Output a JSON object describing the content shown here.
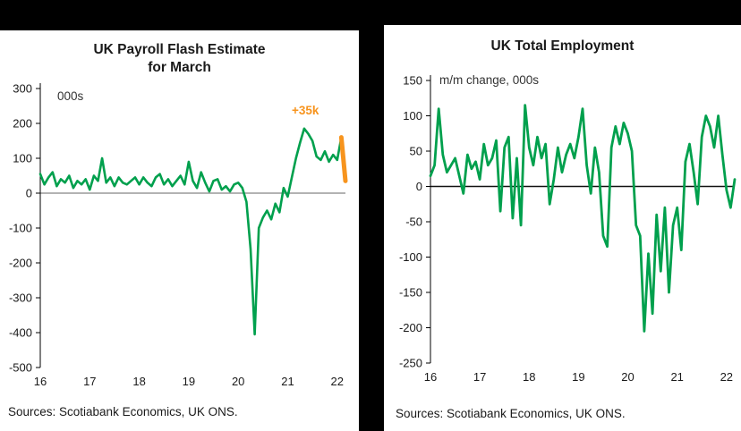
{
  "chart_data": [
    {
      "type": "line",
      "title": "UK Payroll Flash Estimate\nfor March",
      "inside_label": "000s",
      "annotation": {
        "text": "+35k",
        "color": "#f7941e"
      },
      "sources": "Sources: Scotiabank Economics, UK ONS.",
      "x_start": "2016-01",
      "x_frequency": "monthly",
      "xticks": [
        "16",
        "17",
        "18",
        "19",
        "20",
        "21",
        "22"
      ],
      "ylim": [
        -500,
        300
      ],
      "yticks": [
        300,
        200,
        100,
        0,
        -100,
        -200,
        -300,
        -400,
        -500
      ],
      "line_color": "#00a04d",
      "line_width": 2.6,
      "zero_line": {
        "color": "#9a9a9a",
        "width": 1.4
      },
      "highlight_last_segment": {
        "color": "#f7941e",
        "width": 5
      },
      "values": [
        55,
        25,
        45,
        60,
        20,
        40,
        30,
        50,
        15,
        35,
        25,
        40,
        10,
        50,
        35,
        100,
        30,
        45,
        20,
        45,
        30,
        25,
        35,
        45,
        25,
        45,
        30,
        20,
        45,
        55,
        25,
        40,
        20,
        35,
        50,
        25,
        90,
        35,
        15,
        60,
        30,
        5,
        35,
        40,
        10,
        20,
        5,
        25,
        30,
        15,
        -25,
        -160,
        -405,
        -100,
        -70,
        -50,
        -75,
        -30,
        -55,
        15,
        -10,
        45,
        100,
        145,
        185,
        170,
        150,
        105,
        95,
        120,
        90,
        110,
        95,
        160,
        35
      ]
    },
    {
      "type": "line",
      "title": "UK Total Employment",
      "inside_label": "m/m change, 000s",
      "sources": "Sources: Scotiabank Economics, UK ONS.",
      "x_start": "2016-01",
      "x_frequency": "monthly",
      "xticks": [
        "16",
        "17",
        "18",
        "19",
        "20",
        "21",
        "22"
      ],
      "ylim": [
        -250,
        150
      ],
      "yticks": [
        150,
        100,
        50,
        0,
        -50,
        -100,
        -150,
        -200,
        -250
      ],
      "line_color": "#00a04d",
      "line_width": 2.8,
      "zero_line": {
        "color": "#111111",
        "width": 1.6
      },
      "values": [
        15,
        30,
        110,
        45,
        20,
        30,
        40,
        15,
        -10,
        45,
        25,
        35,
        10,
        60,
        30,
        40,
        65,
        -35,
        55,
        70,
        -45,
        40,
        -55,
        115,
        55,
        30,
        70,
        40,
        60,
        -25,
        10,
        55,
        20,
        45,
        60,
        40,
        70,
        110,
        30,
        -10,
        55,
        20,
        -70,
        -85,
        55,
        85,
        60,
        90,
        75,
        50,
        -55,
        -70,
        -205,
        -95,
        -180,
        -40,
        -120,
        -30,
        -150,
        -55,
        -30,
        -90,
        35,
        60,
        20,
        -25,
        70,
        100,
        85,
        55,
        100,
        45,
        -5,
        -30,
        10
      ]
    }
  ]
}
